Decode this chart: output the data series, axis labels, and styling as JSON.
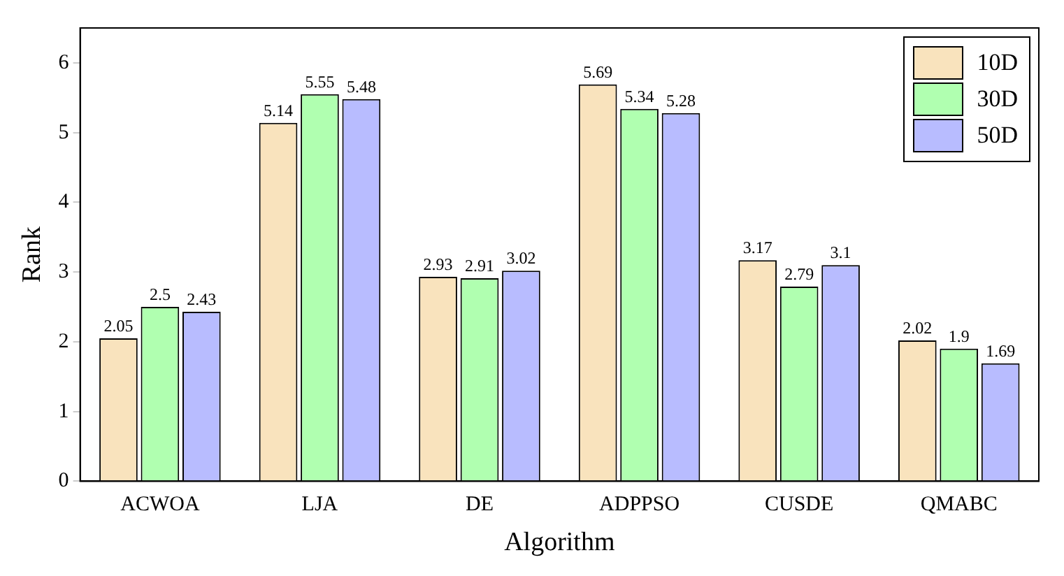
{
  "chart_data": {
    "type": "bar",
    "xlabel": "Algorithm",
    "ylabel": "Rank",
    "categories": [
      "ACWOA",
      "LJA",
      "DE",
      "ADPPSO",
      "CUSDE",
      "QMABC"
    ],
    "series": [
      {
        "name": "10D",
        "color": "#f9e3bd",
        "values": [
          2.05,
          5.14,
          2.93,
          5.69,
          3.17,
          2.02
        ]
      },
      {
        "name": "30D",
        "color": "#b0ffb0",
        "values": [
          2.5,
          5.55,
          2.91,
          5.34,
          2.79,
          1.9
        ]
      },
      {
        "name": "50D",
        "color": "#b8bcff",
        "values": [
          2.43,
          5.48,
          3.02,
          5.28,
          3.1,
          1.69
        ]
      }
    ],
    "ylim": [
      0,
      6.5
    ],
    "yticks": [
      0,
      1,
      2,
      3,
      4,
      5,
      6
    ],
    "grid": false,
    "legend": "top right",
    "data_labels": true
  }
}
